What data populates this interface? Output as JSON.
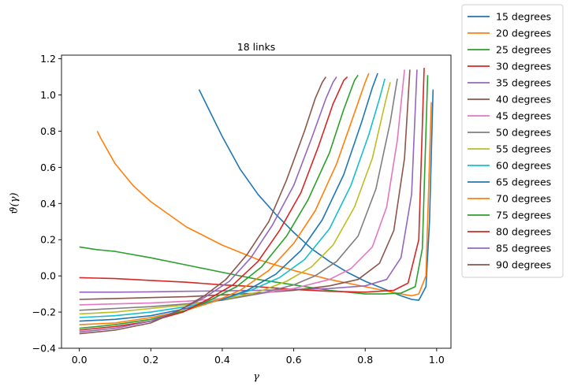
{
  "chart_data": {
    "type": "line",
    "title": "18 links",
    "xlabel": "γ",
    "ylabel": "ϑ(γ)",
    "xlim": [
      -0.05,
      1.04
    ],
    "ylim": [
      -0.4,
      1.22
    ],
    "xticks": [
      "0.0",
      "0.2",
      "0.4",
      "0.6",
      "0.8",
      "1.0"
    ],
    "yticks": [
      "−0.4",
      "−0.2",
      "0.0",
      "0.2",
      "0.4",
      "0.6",
      "0.8",
      "1.0",
      "1.2"
    ],
    "grid": false,
    "legend_position": "outside-right",
    "series": [
      {
        "name": "15 degrees",
        "color": "#1f77b4",
        "x": [
          0.335,
          0.36,
          0.4,
          0.45,
          0.5,
          0.55,
          0.6,
          0.65,
          0.7,
          0.75,
          0.8,
          0.85,
          0.9,
          0.93,
          0.95,
          0.97,
          0.98,
          0.99
        ],
        "y": [
          1.03,
          0.93,
          0.77,
          0.59,
          0.45,
          0.34,
          0.24,
          0.15,
          0.08,
          0.02,
          -0.03,
          -0.07,
          -0.11,
          -0.13,
          -0.135,
          -0.06,
          0.3,
          1.03
        ]
      },
      {
        "name": "20 degrees",
        "color": "#ff7f0e",
        "x": [
          0.05,
          0.06,
          0.1,
          0.15,
          0.2,
          0.25,
          0.3,
          0.35,
          0.4,
          0.5,
          0.6,
          0.7,
          0.8,
          0.85,
          0.9,
          0.93,
          0.95,
          0.97,
          0.985
        ],
        "y": [
          0.8,
          0.76,
          0.62,
          0.5,
          0.41,
          0.34,
          0.27,
          0.22,
          0.17,
          0.09,
          0.03,
          -0.02,
          -0.06,
          -0.08,
          -0.1,
          -0.11,
          -0.1,
          0.0,
          0.96
        ]
      },
      {
        "name": "25 degrees",
        "color": "#2ca02c",
        "x": [
          0.0,
          0.05,
          0.1,
          0.2,
          0.3,
          0.4,
          0.5,
          0.6,
          0.7,
          0.8,
          0.85,
          0.9,
          0.94,
          0.96,
          0.975
        ],
        "y": [
          0.16,
          0.145,
          0.135,
          0.1,
          0.06,
          0.02,
          -0.02,
          -0.05,
          -0.08,
          -0.1,
          -0.1,
          -0.095,
          -0.06,
          0.15,
          1.11
        ]
      },
      {
        "name": "30 degrees",
        "color": "#d62728",
        "x": [
          0.0,
          0.1,
          0.2,
          0.3,
          0.4,
          0.5,
          0.6,
          0.7,
          0.8,
          0.88,
          0.92,
          0.95,
          0.965
        ],
        "y": [
          -0.01,
          -0.015,
          -0.025,
          -0.035,
          -0.05,
          -0.06,
          -0.075,
          -0.085,
          -0.09,
          -0.08,
          -0.04,
          0.2,
          1.15
        ]
      },
      {
        "name": "35 degrees",
        "color": "#9467bd",
        "x": [
          0.0,
          0.1,
          0.2,
          0.3,
          0.4,
          0.5,
          0.6,
          0.7,
          0.8,
          0.86,
          0.9,
          0.93,
          0.945
        ],
        "y": [
          -0.09,
          -0.09,
          -0.088,
          -0.085,
          -0.083,
          -0.08,
          -0.075,
          -0.07,
          -0.055,
          -0.02,
          0.1,
          0.45,
          1.14
        ]
      },
      {
        "name": "40 degrees",
        "color": "#8c564b",
        "x": [
          0.0,
          0.1,
          0.2,
          0.3,
          0.4,
          0.5,
          0.6,
          0.7,
          0.78,
          0.84,
          0.88,
          0.91,
          0.925
        ],
        "y": [
          -0.13,
          -0.125,
          -0.12,
          -0.115,
          -0.105,
          -0.095,
          -0.08,
          -0.055,
          -0.02,
          0.07,
          0.25,
          0.65,
          1.14
        ]
      },
      {
        "name": "45 degrees",
        "color": "#e377c2",
        "x": [
          0.0,
          0.1,
          0.2,
          0.3,
          0.4,
          0.5,
          0.6,
          0.7,
          0.76,
          0.82,
          0.86,
          0.89,
          0.91
        ],
        "y": [
          -0.16,
          -0.155,
          -0.15,
          -0.14,
          -0.125,
          -0.1,
          -0.07,
          -0.02,
          0.04,
          0.16,
          0.38,
          0.75,
          1.14
        ]
      },
      {
        "name": "50 degrees",
        "color": "#7f7f7f",
        "x": [
          0.0,
          0.1,
          0.2,
          0.3,
          0.4,
          0.5,
          0.6,
          0.66,
          0.72,
          0.78,
          0.83,
          0.87,
          0.89
        ],
        "y": [
          -0.19,
          -0.18,
          -0.17,
          -0.155,
          -0.135,
          -0.1,
          -0.05,
          0.0,
          0.08,
          0.22,
          0.48,
          0.85,
          1.09
        ]
      },
      {
        "name": "55 degrees",
        "color": "#bcbd22",
        "x": [
          0.0,
          0.1,
          0.2,
          0.3,
          0.4,
          0.5,
          0.58,
          0.65,
          0.71,
          0.77,
          0.82,
          0.855,
          0.87
        ],
        "y": [
          -0.21,
          -0.2,
          -0.18,
          -0.16,
          -0.13,
          -0.09,
          -0.03,
          0.05,
          0.17,
          0.38,
          0.65,
          0.95,
          1.07
        ]
      },
      {
        "name": "60 degrees",
        "color": "#17becf",
        "x": [
          0.0,
          0.1,
          0.2,
          0.3,
          0.4,
          0.48,
          0.56,
          0.63,
          0.7,
          0.76,
          0.81,
          0.84,
          0.855
        ],
        "y": [
          -0.23,
          -0.22,
          -0.2,
          -0.17,
          -0.13,
          -0.08,
          -0.01,
          0.09,
          0.26,
          0.5,
          0.78,
          0.98,
          1.09
        ]
      },
      {
        "name": "65 degrees",
        "color": "#1f77b4",
        "x": [
          0.0,
          0.1,
          0.2,
          0.3,
          0.4,
          0.47,
          0.55,
          0.62,
          0.68,
          0.74,
          0.79,
          0.82,
          0.835
        ],
        "y": [
          -0.25,
          -0.24,
          -0.22,
          -0.18,
          -0.13,
          -0.08,
          0.01,
          0.14,
          0.31,
          0.56,
          0.85,
          1.04,
          1.12
        ]
      },
      {
        "name": "70 degrees",
        "color": "#ff7f0e",
        "x": [
          0.0,
          0.1,
          0.2,
          0.3,
          0.38,
          0.45,
          0.53,
          0.6,
          0.66,
          0.72,
          0.77,
          0.8,
          0.81
        ],
        "y": [
          -0.27,
          -0.26,
          -0.23,
          -0.19,
          -0.14,
          -0.08,
          0.03,
          0.18,
          0.36,
          0.62,
          0.9,
          1.07,
          1.12
        ]
      },
      {
        "name": "75 degrees",
        "color": "#2ca02c",
        "x": [
          0.0,
          0.1,
          0.2,
          0.3,
          0.37,
          0.44,
          0.51,
          0.58,
          0.64,
          0.7,
          0.74,
          0.77,
          0.78
        ],
        "y": [
          -0.29,
          -0.27,
          -0.24,
          -0.19,
          -0.13,
          -0.06,
          0.05,
          0.22,
          0.42,
          0.68,
          0.92,
          1.08,
          1.11
        ]
      },
      {
        "name": "80 degrees",
        "color": "#d62728",
        "x": [
          0.0,
          0.1,
          0.2,
          0.29,
          0.36,
          0.43,
          0.5,
          0.56,
          0.62,
          0.67,
          0.71,
          0.74,
          0.75
        ],
        "y": [
          -0.3,
          -0.28,
          -0.25,
          -0.2,
          -0.13,
          -0.05,
          0.08,
          0.25,
          0.46,
          0.72,
          0.95,
          1.08,
          1.1
        ]
      },
      {
        "name": "85 degrees",
        "color": "#9467bd",
        "x": [
          0.0,
          0.1,
          0.2,
          0.28,
          0.35,
          0.42,
          0.48,
          0.54,
          0.6,
          0.65,
          0.69,
          0.71,
          0.72
        ],
        "y": [
          -0.31,
          -0.29,
          -0.25,
          -0.19,
          -0.12,
          -0.03,
          0.1,
          0.28,
          0.5,
          0.76,
          0.98,
          1.07,
          1.1
        ]
      },
      {
        "name": "90 degrees",
        "color": "#8c564b",
        "x": [
          0.0,
          0.1,
          0.2,
          0.28,
          0.35,
          0.41,
          0.47,
          0.53,
          0.58,
          0.63,
          0.66,
          0.68,
          0.69
        ],
        "y": [
          -0.32,
          -0.3,
          -0.26,
          -0.19,
          -0.11,
          -0.02,
          0.12,
          0.3,
          0.53,
          0.8,
          0.98,
          1.07,
          1.1
        ]
      }
    ]
  }
}
